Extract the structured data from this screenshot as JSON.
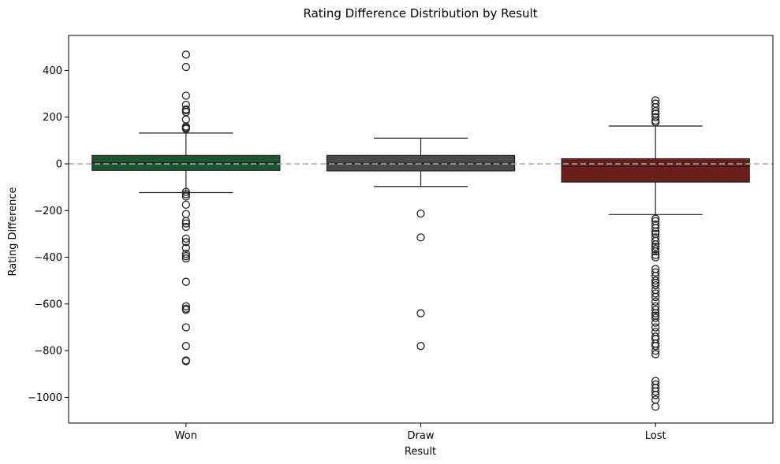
{
  "chart_data": {
    "type": "box",
    "title": "Rating Difference Distribution by Result",
    "xlabel": "Result",
    "ylabel": "Rating Difference",
    "categories": [
      "Won",
      "Draw",
      "Lost"
    ],
    "ylim": [
      -1110,
      550
    ],
    "yticks": [
      -1000,
      -800,
      -600,
      -400,
      -200,
      0,
      200,
      400
    ],
    "ytick_labels": [
      "−1000",
      "−800",
      "−600",
      "−400",
      "−200",
      "0",
      "200",
      "400"
    ],
    "reference_line": {
      "y": 0,
      "style": "dashed",
      "color": "#aaaaaa"
    },
    "grid": false,
    "boxes": [
      {
        "name": "Won",
        "color": "#1e5631",
        "q1": -28,
        "median": 5,
        "q3": 36,
        "whisker_low": -123,
        "whisker_high": 132,
        "mean": 2,
        "outliers": [
          468,
          415,
          292,
          253,
          233,
          230,
          222,
          190,
          160,
          155,
          150,
          -120,
          -130,
          -140,
          -175,
          -215,
          -245,
          -255,
          -270,
          -320,
          -335,
          -360,
          -385,
          -395,
          -405,
          -505,
          -610,
          -620,
          -625,
          -700,
          -780,
          -842,
          -845
        ]
      },
      {
        "name": "Draw",
        "color": "#4a4a4a",
        "q1": -30,
        "median": 3,
        "q3": 36,
        "whisker_low": -97,
        "whisker_high": 110,
        "mean": 2,
        "outliers": [
          -213,
          -315,
          -640,
          -780
        ]
      },
      {
        "name": "Lost",
        "color": "#6b1f1a",
        "q1": -78,
        "median": -12,
        "q3": 22,
        "whisker_low": -217,
        "whisker_high": 162,
        "mean": 3,
        "outliers": [
          272,
          258,
          242,
          226,
          215,
          200,
          185,
          178,
          -235,
          -245,
          -260,
          -275,
          -290,
          -300,
          -315,
          -330,
          -345,
          -355,
          -365,
          -375,
          -390,
          -400,
          -450,
          -465,
          -480,
          -500,
          -510,
          -520,
          -540,
          -555,
          -570,
          -590,
          -610,
          -625,
          -640,
          -650,
          -660,
          -680,
          -700,
          -720,
          -740,
          -750,
          -770,
          -780,
          -800,
          -815,
          -930,
          -945,
          -960,
          -975,
          -990,
          -1010,
          -1040
        ]
      }
    ]
  }
}
